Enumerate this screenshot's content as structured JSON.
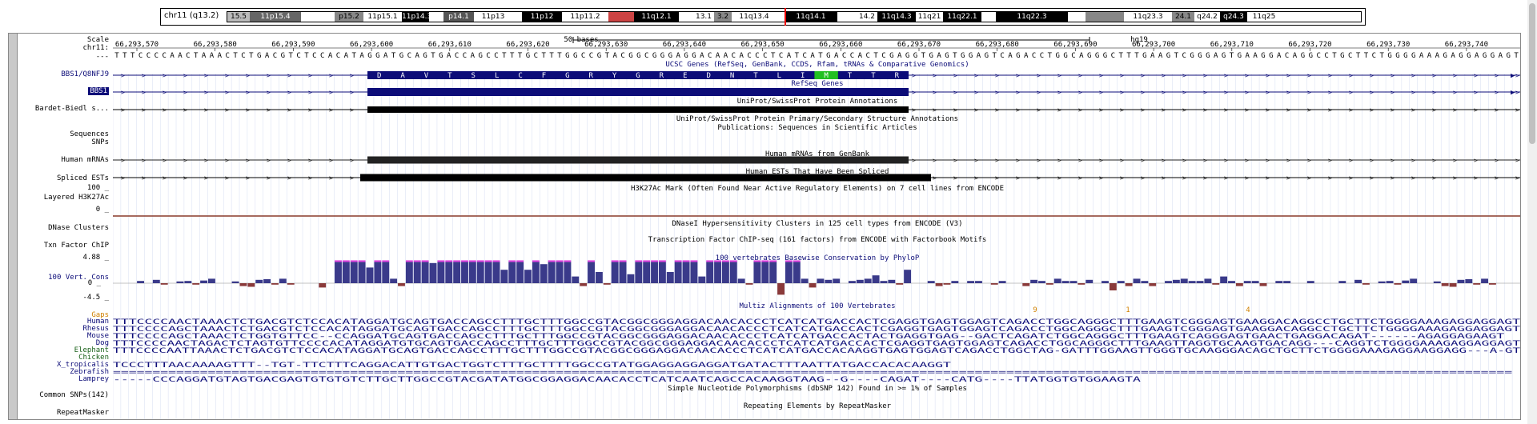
{
  "ideogram": {
    "chrom_label": "chr11 (q13.2)",
    "bands": [
      {
        "name": "15.5",
        "shade": "#bbb"
      },
      {
        "name": "11p15.4",
        "shade": "#666"
      },
      {
        "name": "",
        "shade": "#fff"
      },
      {
        "name": "p15.2",
        "shade": "#888"
      },
      {
        "name": "11p15.1",
        "shade": "#fff"
      },
      {
        "name": "11p14.3",
        "shade": "#000"
      },
      {
        "name": "",
        "shade": "#fff"
      },
      {
        "name": "p14.1",
        "shade": "#555"
      },
      {
        "name": "11p13",
        "shade": "#fff"
      },
      {
        "name": "",
        "shade": "#fff"
      },
      {
        "name": "11p12",
        "shade": "#000"
      },
      {
        "name": "11p11.2",
        "shade": "#fff"
      },
      {
        "name": "",
        "shade": "#c44"
      },
      {
        "name": "11q12.1",
        "shade": "#000"
      },
      {
        "name": "",
        "shade": "#fff"
      },
      {
        "name": "13.1",
        "shade": "#fff"
      },
      {
        "name": "3.2",
        "shade": "#888"
      },
      {
        "name": "11q13.4",
        "shade": "#fff"
      },
      {
        "name": "",
        "shade": "#fff"
      },
      {
        "name": "11q14.1",
        "shade": "#000"
      },
      {
        "name": "",
        "shade": "#fff"
      },
      {
        "name": "14.2",
        "shade": "#fff"
      },
      {
        "name": "11q14.3",
        "shade": "#000"
      },
      {
        "name": "11q21",
        "shade": "#fff"
      },
      {
        "name": "11q22.1",
        "shade": "#000"
      },
      {
        "name": "",
        "shade": "#fff"
      },
      {
        "name": "11q22.3",
        "shade": "#000"
      },
      {
        "name": "",
        "shade": "#fff"
      },
      {
        "name": "",
        "shade": "#888"
      },
      {
        "name": "11q23.3",
        "shade": "#fff"
      },
      {
        "name": "24.1",
        "shade": "#888"
      },
      {
        "name": "q24.2",
        "shade": "#fff"
      },
      {
        "name": "q24.3",
        "shade": "#000"
      },
      {
        "name": "11q25",
        "shade": "#fff"
      }
    ]
  },
  "labels": {
    "scale": "Scale",
    "chr": "chr11:",
    "dashes": "---",
    "ucsc": "BBS1/Q8NFJ9",
    "refseq": "BBS1",
    "uniprot": "Bardet-Biedl s...",
    "sequences": "Sequences",
    "snps": "SNPs",
    "mrna": "Human mRNAs",
    "est": "Spliced ESTs",
    "h3_top": "100 _",
    "h3": "Layered H3K27Ac",
    "h3_zero": "0 _",
    "dnase": "DNase Clusters",
    "txn": "Txn Factor ChIP",
    "cons_top": "4.88 _",
    "cons": "100 Vert. Cons",
    "cons_zero": "0 _",
    "cons_bottom": "-4.5 _",
    "gaps": "Gaps",
    "species": [
      "Human",
      "Rhesus",
      "Mouse",
      "Dog",
      "Elephant",
      "Chicken",
      "X_tropicalis",
      "Zebrafish",
      "Lamprey"
    ],
    "common_snps": "Common SNPs(142)",
    "repeatmasker": "RepeatMasker"
  },
  "scale": {
    "bases": "50 bases",
    "assembly": "hg19"
  },
  "positions": [
    "66,293,570",
    "66,293,580",
    "66,293,590",
    "66,293,600",
    "66,293,610",
    "66,293,620",
    "66,293,630",
    "66,293,640",
    "66,293,650",
    "66,293,660",
    "66,293,670",
    "66,293,680",
    "66,293,690",
    "66,293,700",
    "66,293,710",
    "66,293,720",
    "66,293,730",
    "66,293,740"
  ],
  "dna": "TTTCCCCAACTAAACTCTGACGTCTCCACATAGGATGCAGTGACCAGCCTTTGCTTTGGCCGTACGGCGGGAGGACAACACCCTCATCATGACCACTCGAGGTGAGTGGAGTCAGACCTGGCAGGGCTTTGAAGTCGGGAGTGAAGGACAGGCCTGCTTCTGGGGAAAGAGGAGGAGT",
  "protein": [
    "D",
    "A",
    "V",
    "T",
    "S",
    "L",
    "C",
    "F",
    "G",
    "R",
    "Y",
    "G",
    "R",
    "E",
    "D",
    "N",
    "T",
    "L",
    "I",
    "M",
    "T",
    "T",
    "R"
  ],
  "track_titles": {
    "ucsc": "UCSC Genes (RefSeq, GenBank, CCDS, Rfam, tRNAs & Comparative Genomics)",
    "refseq": "RefSeq Genes",
    "uniprot": "UniProt/SwissProt Protein Annotations",
    "uniprot2": "UniProt/SwissProt Protein Primary/Secondary Structure Annotations",
    "pubs": "Publications: Sequences in Scientific Articles",
    "mrna": "Human mRNAs from GenBank",
    "est": "Human ESTs That Have Been Spliced",
    "h3": "H3K27Ac Mark (Often Found Near Active Regulatory Elements) on 7 cell lines from ENCODE",
    "dnase": "DNaseI Hypersensitivity Clusters in 125 cell types from ENCODE (V3)",
    "txn": "Transcription Factor ChIP-seq (161 factors) from ENCODE with Factorbook Motifs",
    "cons": "100 vertebrates Basewise Conservation by PhyloP",
    "multiz": "Multiz Alignments of 100 Vertebrates",
    "snp": "Simple Nucleotide Polymorphisms (dbSNP 142) Found in >= 1% of Samples",
    "rmsk": "Repeating Elements by RepeatMasker"
  },
  "gap_marks": [
    "9",
    "1",
    "4"
  ],
  "alignments": [
    "TTTCCCCAACTAAACTCTGACGTCTCCACATAGGATGCAGTGACCAGCCTTTGCTTTGGCCGTACGGCGGGAGGACAACACCCTCATCATGACCACTCGAGGTGAGTGGAGTCAGACCTGGCAGGGCTTTGAAGTCGGGAGTGAAGGACAGGCCTGCTTCTGGGGAAAGAGGAGGAGT",
    "TTTCCCCAGCTAAACTCTGACGTCTCCACATAGGATGCAGTGACCAGCCTTTGCTTTGGCCGTACGGCGGGAGGACAACACCCTCATCATGACCACTCGAGGTGAGTGGAGTCAGACCTGGCAGGGCTTTGAAGTCGGGAGTGAAGGACAGGCCTGCTTCTGGGGAAAGAGGAGGAGT",
    "TTTCCCCAGCTAAACTCTGGTGTTCC--CCAGGATGCAGTGACCAGCCTTTGCTTTGGCCGTACGGCGGGAGGACAACACCCTCATCATGACCACTACTGAGGTGAG--GACTCAGATCTGGCAGGGCTTTGAAGTCAGGGAGTGAACTGAGGACAGAT------AGAGGAGAAGT",
    "TTTCCCCAACTAGACTCTAGTGTTCCCCACATAGGATGTGCAGTGACCAGCCTTTGCTTTGGCCGTACGGCGGGAGGACAACACCCTCATCATGACCACTCGAGGTGAGTGGAGTCAGACCTGGCAGGGCTTTGAAGTTAGGTGCAAGTGACAGG---CAGGTCTGGGGAAAGAGGAGGAGT",
    "TTTCCCCAATTAAACTCTGACGTCTCCACATAGGATGCAGTGACCAGCCTTTGCTTTGGCCGTACGGCGGGAGGACAACACCCTCATCATGACCACAAGGTGAGTGGAGTCAGACCTGGCTAG-GATTTGGAAGTTGGGTGCAAGGGACAGCTGCTTCTGGGGAAAGAGGAAGGAGG---A-GT",
    "",
    "TCCCTTTAACAAAAGTTT--TGT-TTCTTTCAGGACATTGTGACTGGTCTTTGCTTTTGGCCGTATGGAGGAGGAGGATGATACTTTAATTATGACCACACAAGGT",
    "=================================================================================================================================================================================",
    "-----CCCAGGATGTAGTGACGAGTGTGTGTCTTGCTTGGCCGTACGATATGGCGGAGGACAACACCTCATCAATCAGCCACAAGGTAAG--G----CAGAT----CATG----TTATGGTGTGGAAGTA"
  ]
}
